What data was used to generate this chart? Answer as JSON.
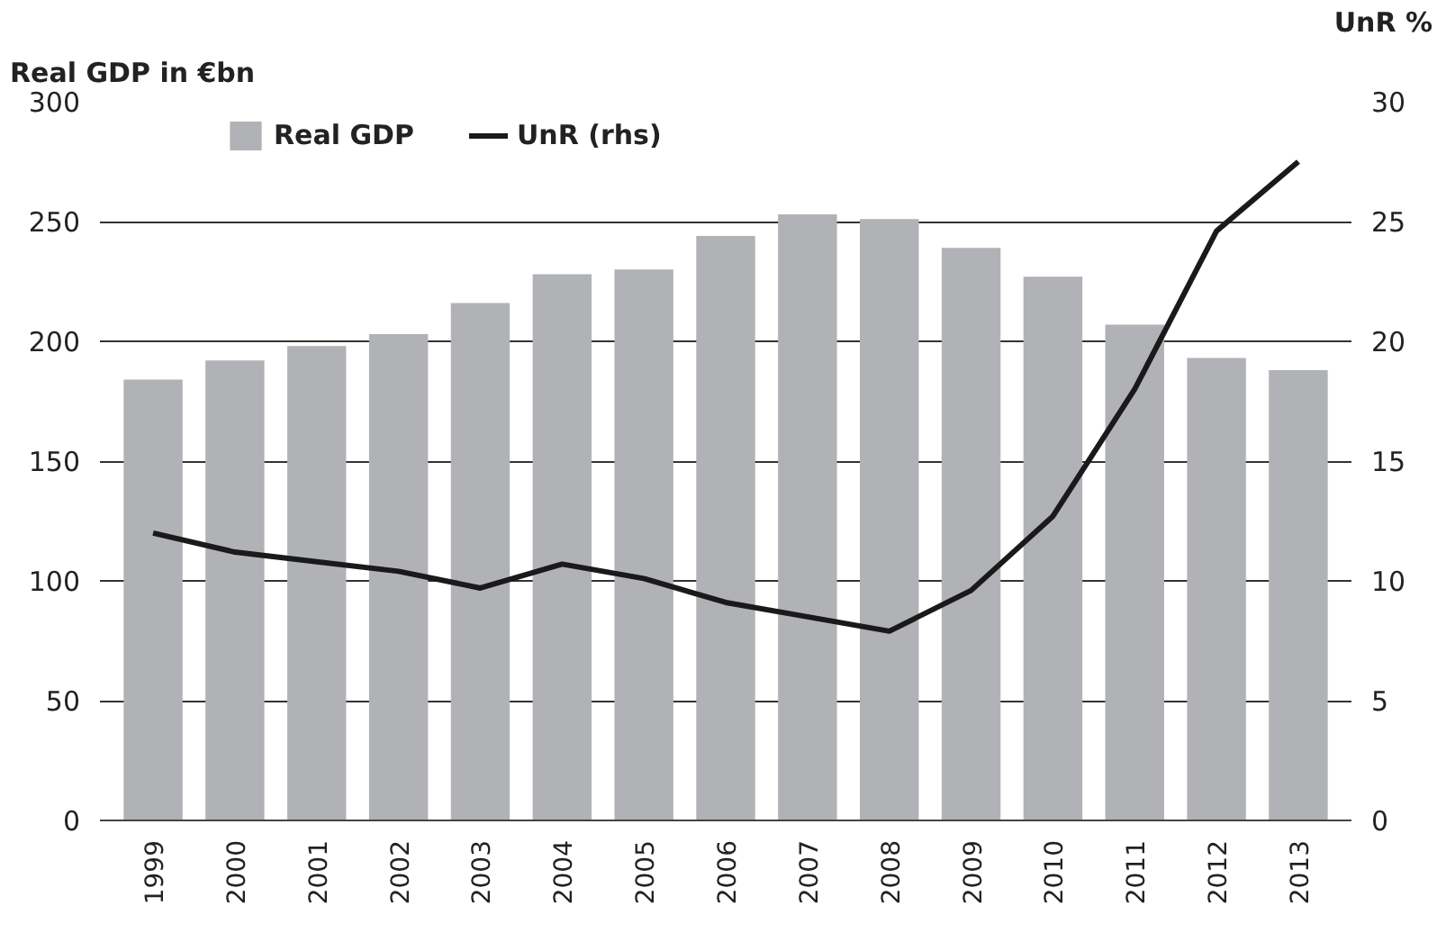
{
  "chart_data": {
    "type": "bar",
    "ylabel": "Real GDP  in €bn",
    "y2label": "UnR %",
    "categories": [
      "1999",
      "2000",
      "2001",
      "2002",
      "2003",
      "2004",
      "2005",
      "2006",
      "2007",
      "2008",
      "2009",
      "2010",
      "2011",
      "2012",
      "2013"
    ],
    "series": [
      {
        "name": "Real GDP",
        "color": "#b1b2b6",
        "values": [
          184,
          192,
          198,
          203,
          216,
          228,
          230,
          244,
          253,
          251,
          239,
          227,
          207,
          193,
          188
        ]
      },
      {
        "name": "UnR (rhs)",
        "type": "line",
        "axis": "y2",
        "color": "#1a1a1a",
        "values": [
          12.0,
          11.2,
          10.8,
          10.4,
          9.7,
          10.7,
          10.1,
          9.1,
          8.5,
          7.9,
          9.6,
          12.7,
          18.0,
          24.6,
          27.5
        ]
      }
    ],
    "ylim": [
      0,
      300
    ],
    "yticks": [
      0,
      50,
      100,
      150,
      200,
      250,
      300
    ],
    "y2lim": [
      0,
      30
    ],
    "y2ticks": [
      0,
      5,
      10,
      15,
      20,
      25,
      30
    ],
    "grid": "y",
    "legend": "top left",
    "line_style": "solid",
    "marker": "none"
  }
}
